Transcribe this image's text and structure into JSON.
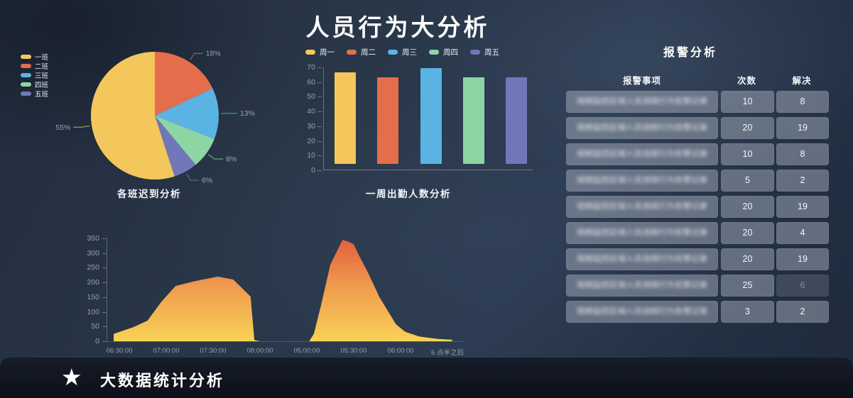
{
  "header": {
    "title": "人员行为大分析"
  },
  "chart_data": [
    {
      "id": "class-late-pie",
      "type": "pie",
      "title": "各班迟到分析",
      "legend_position": "left",
      "series": [
        {
          "name": "一班",
          "value": 55,
          "color": "#F3C75B"
        },
        {
          "name": "二班",
          "value": 18,
          "color": "#E46E4C"
        },
        {
          "name": "三班",
          "value": 13,
          "color": "#5BB3E4"
        },
        {
          "name": "四班",
          "value": 8,
          "color": "#8ED5A6"
        },
        {
          "name": "五班",
          "value": 6,
          "color": "#7177B8"
        }
      ],
      "draw_order": [
        1,
        2,
        3,
        4,
        0
      ],
      "label_format": "percent"
    },
    {
      "id": "weekly-attendance-bar",
      "type": "bar",
      "title": "一周出勤人数分析",
      "legend_position": "top",
      "categories": [
        "周一",
        "周二",
        "周三",
        "周四",
        "周五"
      ],
      "values": [
        66,
        63,
        69,
        63,
        63
      ],
      "bar_base": 4,
      "colors": [
        "#F3C75B",
        "#E46E4C",
        "#5BB3E4",
        "#8ED5A6",
        "#7177B8"
      ],
      "ylim": [
        0,
        70
      ],
      "yticks": [
        0,
        10,
        20,
        30,
        40,
        50,
        60,
        70
      ]
    },
    {
      "id": "time-flow-area",
      "type": "area",
      "title": "",
      "x_labels": [
        "06:30:00",
        "07:00:00",
        "07:30:00",
        "08:00:00",
        "05:00:00",
        "05:30:00",
        "06:00:00",
        "6 点半之后"
      ],
      "ylim": [
        0,
        350
      ],
      "yticks": [
        0,
        50,
        100,
        150,
        200,
        250,
        300,
        350
      ],
      "points": [
        [
          -0.12,
          25
        ],
        [
          0.3,
          48
        ],
        [
          0.6,
          70
        ],
        [
          0.9,
          135
        ],
        [
          1.2,
          188
        ],
        [
          1.6,
          204
        ],
        [
          2.1,
          220
        ],
        [
          2.43,
          210
        ],
        [
          2.8,
          152
        ],
        [
          2.88,
          4
        ],
        [
          3,
          0
        ],
        [
          4.05,
          0
        ],
        [
          4.15,
          25
        ],
        [
          4.3,
          120
        ],
        [
          4.5,
          260
        ],
        [
          4.76,
          345
        ],
        [
          4.9,
          338
        ],
        [
          5,
          330
        ],
        [
          5.1,
          296
        ],
        [
          5.3,
          235
        ],
        [
          5.55,
          150
        ],
        [
          5.9,
          58
        ],
        [
          6.1,
          32
        ],
        [
          6.4,
          16
        ],
        [
          6.8,
          8
        ],
        [
          7.1,
          5
        ]
      ],
      "gradient": [
        "#E2613E",
        "#EF9A4E",
        "#F8D256"
      ]
    }
  ],
  "alarm_panel": {
    "title": "报警分析",
    "headers": [
      "报警事项",
      "次数",
      "解决"
    ],
    "item_redacted": true,
    "row_item_placeholder": "视频监控区域人员违规行为告警记录",
    "rows": [
      {
        "count": "10",
        "resolved": "8"
      },
      {
        "count": "20",
        "resolved": "19"
      },
      {
        "count": "10",
        "resolved": "8"
      },
      {
        "count": "5",
        "resolved": "2"
      },
      {
        "count": "20",
        "resolved": "19"
      },
      {
        "count": "20",
        "resolved": "4"
      },
      {
        "count": "20",
        "resolved": "19"
      },
      {
        "count": "25",
        "resolved": "6",
        "resolved_dim": true
      },
      {
        "count": "3",
        "resolved": "2"
      }
    ]
  },
  "footer": {
    "icon_glyph": "★",
    "label": "大数据统计分析"
  }
}
